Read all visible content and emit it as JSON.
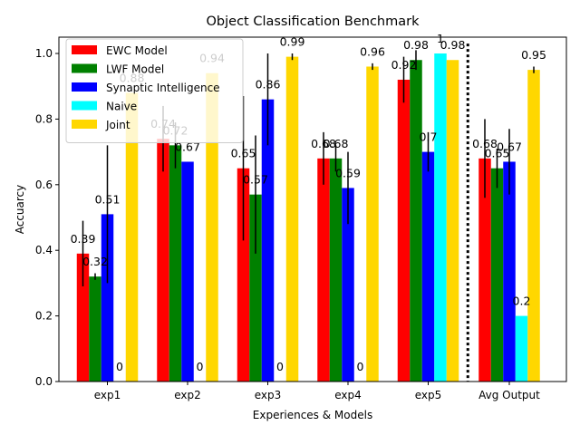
{
  "chart_data": {
    "type": "bar",
    "title": "Object Classification Benchmark",
    "xlabel": "Experiences & Models",
    "ylabel": "Accuarcy",
    "ylim": [
      0,
      1.05
    ],
    "yticks": [
      "0.0",
      "0.2",
      "0.4",
      "0.6",
      "0.8",
      "1.0"
    ],
    "categories": [
      "exp1",
      "exp2",
      "exp3",
      "exp4",
      "exp5",
      "Avg Output"
    ],
    "legend_position": "top-left",
    "divider": {
      "style": "dotted",
      "between": [
        "exp5",
        "Avg Output"
      ]
    },
    "series": [
      {
        "name": "EWC Model",
        "color": "#ff0000",
        "values": [
          0.39,
          0.74,
          0.65,
          0.68,
          0.92,
          0.68
        ],
        "labels": [
          "0.39",
          "0.74",
          "0.65",
          "0.68",
          "0.92",
          "0.68"
        ],
        "errors": [
          0.1,
          0.1,
          0.22,
          0.08,
          0.07,
          0.12
        ]
      },
      {
        "name": "LWF Model",
        "color": "#008000",
        "values": [
          0.32,
          0.72,
          0.57,
          0.68,
          0.98,
          0.65
        ],
        "labels": [
          "0.32",
          "0.72",
          "0.57",
          "0.68",
          "0.98",
          "0.65"
        ],
        "errors": [
          0.01,
          0.07,
          0.18,
          0.04,
          0.03,
          0.06
        ]
      },
      {
        "name": "Synaptic Intelligence",
        "color": "#0000ff",
        "values": [
          0.51,
          0.67,
          0.86,
          0.59,
          0.7,
          0.67
        ],
        "labels": [
          "0.51",
          "0.67",
          "0.86",
          "0.59",
          "0.7",
          "0.67"
        ],
        "errors": [
          0.21,
          0.0,
          0.14,
          0.11,
          0.06,
          0.1
        ]
      },
      {
        "name": "Naive",
        "color": "#00ffff",
        "values": [
          0,
          0,
          0,
          0,
          1.0,
          0.2
        ],
        "labels": [
          "0",
          "0",
          "0",
          "0",
          "1",
          "0.2"
        ],
        "errors": [
          0,
          0,
          0,
          0,
          0,
          0
        ]
      },
      {
        "name": "Joint",
        "color": "#ffd700",
        "values": [
          0.88,
          0.94,
          0.99,
          0.96,
          0.98,
          0.95
        ],
        "labels": [
          "0.88",
          "0.94",
          "0.99",
          "0.96",
          "0.98",
          "0.95"
        ],
        "errors": [
          0,
          0,
          0.01,
          0.01,
          0,
          0.01
        ]
      }
    ]
  }
}
